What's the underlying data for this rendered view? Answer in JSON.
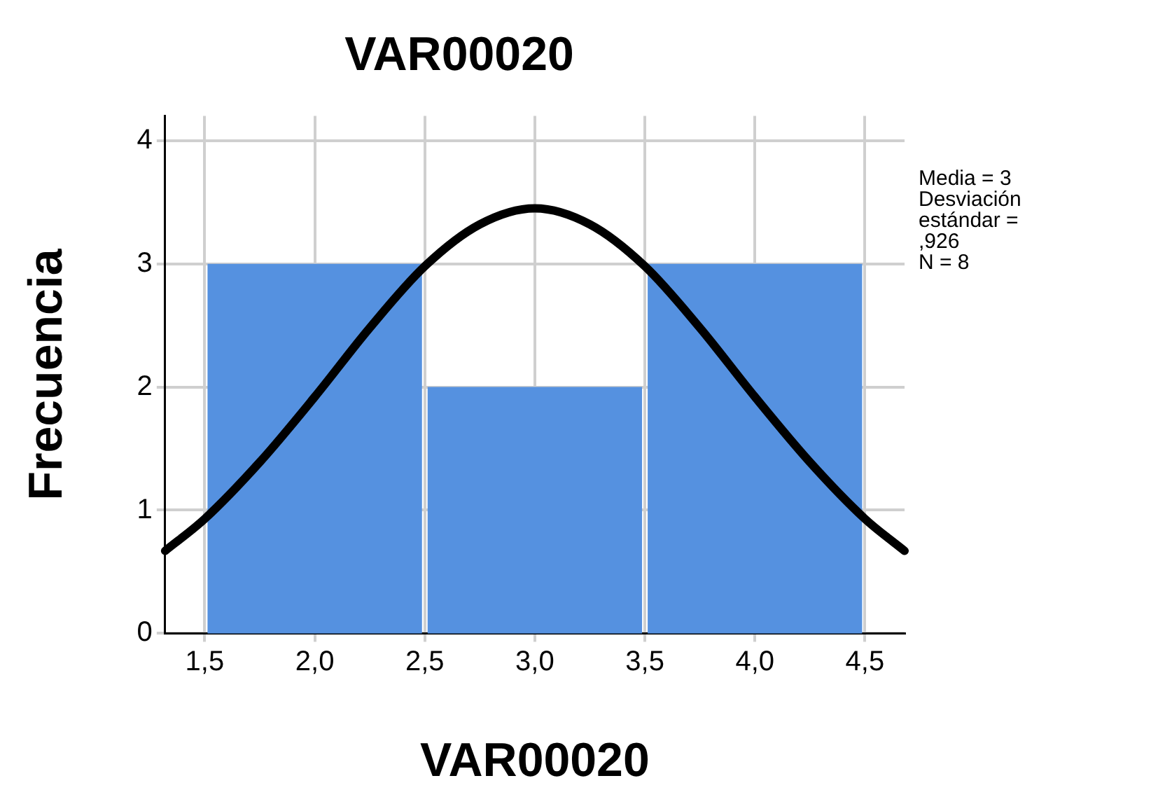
{
  "chart_data": {
    "type": "histogram",
    "title": "VAR00020",
    "xlabel": "VAR00020",
    "ylabel": "Frecuencia",
    "bins": [
      1.5,
      2.5,
      3.5,
      4.5
    ],
    "values": [
      3,
      2,
      3
    ],
    "color": "#5591e0",
    "xlim": [
      1.32,
      4.68
    ],
    "xticks": [
      {
        "value": 1.5,
        "label": "1,5"
      },
      {
        "value": 2,
        "label": "2,0"
      },
      {
        "value": 2.5,
        "label": "2,5"
      },
      {
        "value": 3,
        "label": "3,0"
      },
      {
        "value": 3.5,
        "label": "3,5"
      },
      {
        "value": 4,
        "label": "4,0"
      },
      {
        "value": 4.5,
        "label": "4,5"
      }
    ],
    "ylim": [
      0,
      4.2
    ],
    "yticks": [
      0,
      1,
      2,
      3,
      4
    ],
    "grid": true,
    "legend": false,
    "series": [
      {
        "type": "line",
        "color": "#000000",
        "marker": "none",
        "x": [
          1.32,
          1.5,
          1.75,
          2,
          2.25,
          2.5,
          2.75,
          3,
          3.25,
          3.5,
          3.75,
          4,
          4.25,
          4.5,
          4.68
        ],
        "values": [
          0.67,
          0.93,
          1.39,
          1.92,
          2.48,
          2.98,
          3.32,
          3.45,
          3.32,
          2.98,
          2.48,
          1.92,
          1.39,
          0.93,
          0.67
        ]
      }
    ],
    "annotations": [
      "Media = 3",
      "Desviación estándar = ,926",
      "N = 8"
    ]
  }
}
